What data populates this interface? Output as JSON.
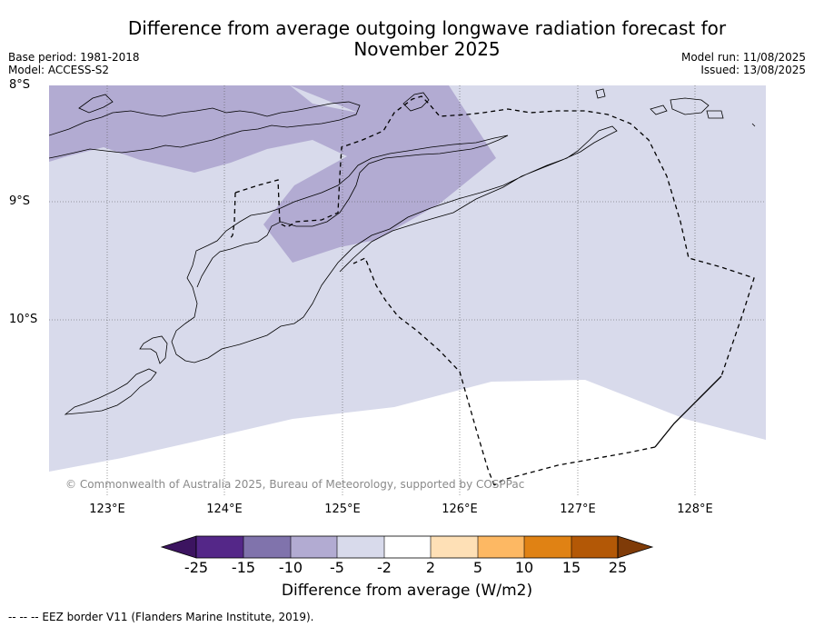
{
  "title_line1": "Difference from average outgoing longwave radiation forecast for",
  "title_line2": "November 2025",
  "base_period": "Base period: 1981-2018",
  "model": "Model: ACCESS-S2",
  "model_run": "Model run: 11/08/2025",
  "issued": "Issued: 13/08/2025",
  "lat_labels": [
    "8°S",
    "9°S",
    "10°S"
  ],
  "lon_labels": [
    "123°E",
    "124°E",
    "125°E",
    "126°E",
    "127°E",
    "128°E"
  ],
  "copyright": "© Commonwealth of Australia 2025, Bureau of Meteorology, supported by COSPPac",
  "colorbar": {
    "ticks": [
      "-25",
      "-15",
      "-10",
      "-5",
      "-2",
      "2",
      "5",
      "10",
      "15",
      "25"
    ],
    "colors": [
      "#3c1460",
      "#542788",
      "#8073ac",
      "#b2abd2",
      "#d8daeb",
      "#ffffff",
      "#fee0b6",
      "#fdb863",
      "#e08214",
      "#b35806",
      "#7f3b08"
    ],
    "label": "Difference from average (W/m2)"
  },
  "legend_note": "--  --  -- EEZ border V11 (Flanders Marine Institute, 2019)."
}
